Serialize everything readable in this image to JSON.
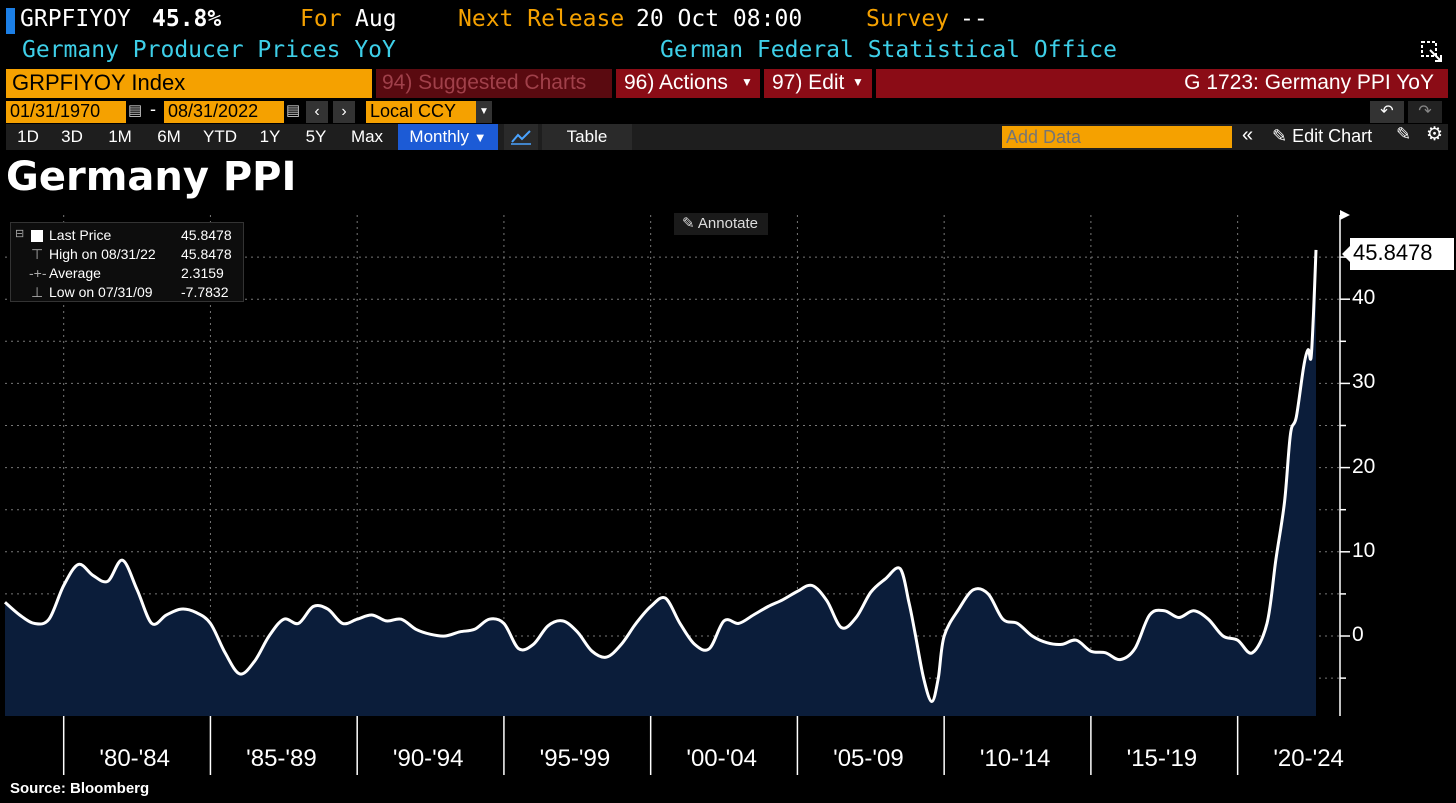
{
  "header": {
    "ticker": "GRPFIYOY",
    "last_value": "45.8%",
    "for_label": "For",
    "for_value": "Aug",
    "next_release_label": "Next Release",
    "next_release_value": "20 Oct 08:00",
    "survey_label": "Survey",
    "survey_value": "--",
    "description": "Germany Producer Prices YoY",
    "source_agency": "German Federal Statistical Office"
  },
  "toolbar": {
    "security": "GRPFIYOY Index",
    "suggested_charts": "94) Suggested Charts",
    "actions": "96) Actions",
    "edit": "97) Edit",
    "chart_id": "G 1723: Germany PPI YoY",
    "start_date": "01/31/1970",
    "date_sep": "-",
    "end_date": "08/31/2022",
    "currency": "Local CCY",
    "add_data_placeholder": "Add Data",
    "edit_chart": "Edit Chart",
    "table": "Table",
    "frequency": "Monthly",
    "periods": [
      "1D",
      "3D",
      "1M",
      "6M",
      "YTD",
      "1Y",
      "5Y",
      "Max"
    ]
  },
  "legend": {
    "last_price_label": "Last Price",
    "last_price_value": "45.8478",
    "high_label": "High on 08/31/22",
    "high_value": "45.8478",
    "average_label": "Average",
    "average_value": "2.3159",
    "low_label": "Low on 07/31/09",
    "low_value": "-7.7832"
  },
  "annotate_label": "Annotate",
  "last_value_tag": "45.8478",
  "footer_source": "Source: Bloomberg",
  "colors": {
    "area_fill": "#0b1d3a",
    "line": "#ffffff",
    "orange": "#f5a100",
    "cyan": "#3ecfe8",
    "darkred": "#8b0c16",
    "blue_button": "#1c5bd6"
  },
  "chart_data": {
    "type": "area",
    "title": "Germany PPI",
    "xlabel": "",
    "ylabel": "",
    "ylim": [
      -9.5,
      50
    ],
    "yticks": [
      0,
      10,
      20,
      30,
      40
    ],
    "x_tick_labels": [
      "'80-'84",
      "'85-'89",
      "'90-'94",
      "'95-'99",
      "'00-'04",
      "'05-'09",
      "'10-'14",
      "'15-'19",
      "'20-'24"
    ],
    "series": [
      {
        "x": [
          1978.0,
          1978.5,
          1979.0,
          1979.5,
          1980.0,
          1980.5,
          1981.0,
          1981.5,
          1982.0,
          1982.5,
          1983.0,
          1983.5,
          1984.0,
          1984.5,
          1985.0,
          1985.5,
          1986.0,
          1986.5,
          1987.0,
          1987.5,
          1988.0,
          1988.5,
          1989.0,
          1989.5,
          1990.0,
          1990.5,
          1991.0,
          1991.5,
          1992.0,
          1992.5,
          1993.0,
          1993.5,
          1994.0,
          1994.5,
          1995.0,
          1995.5,
          1996.0,
          1996.5,
          1997.0,
          1997.5,
          1998.0,
          1998.5,
          1999.0,
          1999.5,
          2000.0,
          2000.5,
          2001.0,
          2001.5,
          2002.0,
          2002.5,
          2003.0,
          2003.5,
          2004.0,
          2004.5,
          2005.0,
          2005.5,
          2006.0,
          2006.5,
          2007.0,
          2007.5,
          2008.0,
          2008.5,
          2008.8,
          2009.0,
          2009.3,
          2009.58,
          2009.8,
          2010.0,
          2010.5,
          2011.0,
          2011.5,
          2012.0,
          2012.5,
          2013.0,
          2013.5,
          2014.0,
          2014.5,
          2015.0,
          2015.5,
          2016.0,
          2016.5,
          2017.0,
          2017.5,
          2018.0,
          2018.5,
          2019.0,
          2019.5,
          2020.0,
          2020.5,
          2021.0,
          2021.3,
          2021.6,
          2021.8,
          2022.0,
          2022.25,
          2022.4,
          2022.5,
          2022.58,
          2022.67
        ],
        "values": [
          4.0,
          2.5,
          1.5,
          2.0,
          6.0,
          8.5,
          7.2,
          6.5,
          9.0,
          5.5,
          1.5,
          2.5,
          3.2,
          2.8,
          1.5,
          -2.0,
          -4.5,
          -3.0,
          0.0,
          2.0,
          1.5,
          3.5,
          3.2,
          1.5,
          2.0,
          2.5,
          1.8,
          2.0,
          0.8,
          0.2,
          0.0,
          0.5,
          0.8,
          2.0,
          1.5,
          -1.5,
          -1.0,
          1.2,
          1.8,
          0.5,
          -1.8,
          -2.5,
          -1.0,
          1.5,
          3.5,
          4.5,
          1.5,
          -1.0,
          -1.5,
          1.8,
          1.5,
          2.5,
          3.5,
          4.3,
          5.3,
          6.0,
          4.2,
          1.0,
          2.2,
          5.2,
          6.8,
          8.0,
          4.0,
          0.5,
          -5.0,
          -7.78,
          -5.0,
          0.0,
          3.2,
          5.5,
          5.0,
          2.0,
          1.5,
          0.0,
          -0.8,
          -1.0,
          -0.5,
          -1.8,
          -2.0,
          -2.8,
          -1.5,
          2.5,
          3.0,
          2.2,
          3.0,
          2.0,
          0.0,
          -0.5,
          -2.0,
          1.5,
          9.0,
          16.0,
          24.0,
          26.0,
          32.0,
          34.0,
          33.0,
          38.0,
          45.85
        ]
      }
    ]
  }
}
